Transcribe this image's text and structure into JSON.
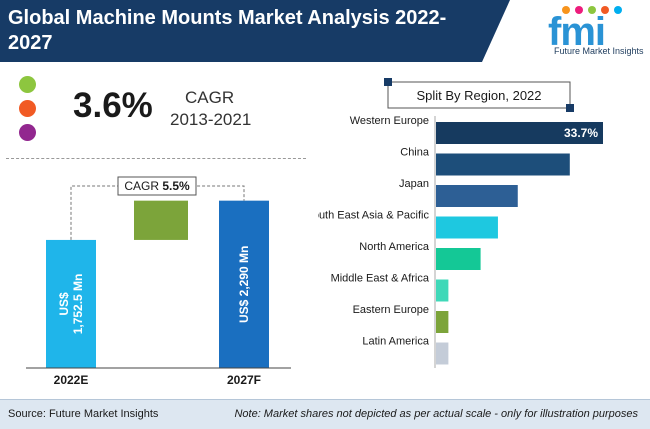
{
  "header": {
    "title_line1": "Global Machine Mounts Market Analysis 2022-",
    "title_line2": "2027",
    "bg_color": "#173b66"
  },
  "logo": {
    "text": "fmi",
    "subtitle": "Future Market Insights",
    "dot_colors": [
      "#f7941d",
      "#ed1c7c",
      "#8dc63f",
      "#f15a24",
      "#00aeef"
    ]
  },
  "cagr": {
    "value": "3.6%",
    "label": "CAGR",
    "period": "2013-2021",
    "dot_colors": [
      "#8dc63f",
      "#f15a24",
      "#92278f"
    ]
  },
  "chart_data": [
    {
      "type": "bar",
      "categories": [
        "2022E",
        "2027F"
      ],
      "values": [
        1752.5,
        2290
      ],
      "value_labels": [
        "US$\n1,752.5 Mn",
        "US$ 2,290 Mn"
      ],
      "bar_colors": [
        "#1fb5ea",
        "#1a6fc0"
      ],
      "growth_color": "#7ca43a",
      "annotation": "CAGR",
      "annotation_value": "5.5%",
      "ylim": [
        0,
        2600
      ]
    },
    {
      "type": "bar",
      "orientation": "horizontal",
      "title": "Split By Region, 2022",
      "categories": [
        "Western Europe",
        "China",
        "Japan",
        "South East Asia & Pacific",
        "North America",
        "Middle East & Africa",
        "Eastern Europe",
        "Latin America"
      ],
      "values": [
        33.7,
        27.0,
        16.5,
        12.5,
        9.0,
        2.5,
        2.5,
        2.5
      ],
      "data_labels": [
        "33.7%",
        "",
        "",
        "",
        "",
        "",
        "",
        ""
      ],
      "bar_colors": [
        "#163a5f",
        "#1d4e7a",
        "#2d5f95",
        "#1ec8e0",
        "#14c896",
        "#3fd8b8",
        "#7ca43a",
        "#c4ccd8"
      ]
    }
  ],
  "footer": {
    "source": "Source: Future Market Insights",
    "note": "Note: Market shares not depicted as per actual scale - only for illustration purposes"
  }
}
